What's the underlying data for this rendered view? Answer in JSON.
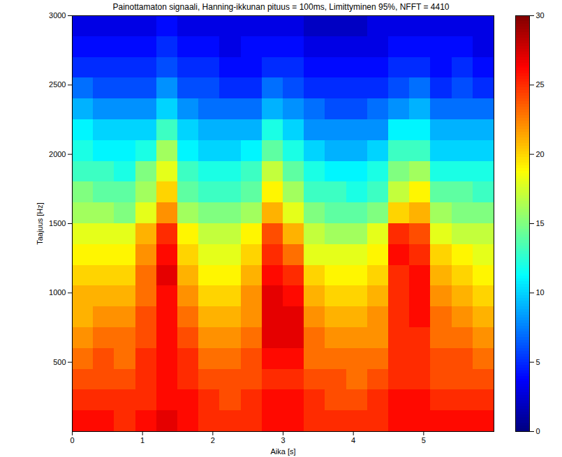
{
  "chart_data": {
    "type": "heatmap",
    "title": "Painottamaton signaali, Hanning-ikkunan pituus = 100ms, Limittyminen 95%, NFFT = 4410",
    "xlabel": "Aika [s]",
    "ylabel": "Taajuus [Hz]",
    "x_bins": [
      0,
      0.3,
      0.6,
      0.9,
      1.2,
      1.5,
      1.8,
      2.1,
      2.4,
      2.7,
      3.0,
      3.3,
      3.6,
      3.9,
      4.2,
      4.5,
      4.8,
      5.1,
      5.4,
      5.7,
      6.0
    ],
    "y_bins": [
      0,
      150,
      300,
      450,
      600,
      750,
      900,
      1050,
      1200,
      1350,
      1500,
      1650,
      1800,
      1950,
      2100,
      2250,
      2400,
      2550,
      2700,
      2850,
      3000
    ],
    "cells": [
      [
        26,
        25,
        24,
        23,
        22,
        21,
        21,
        20,
        19,
        18,
        16,
        15,
        13,
        12,
        11,
        9,
        7,
        5,
        4,
        3
      ],
      [
        26,
        25,
        24,
        24,
        23,
        22,
        21,
        20,
        19,
        18,
        16,
        14,
        13,
        11,
        10,
        8,
        6,
        5,
        4,
        3
      ],
      [
        25,
        25,
        24,
        23,
        23,
        22,
        21,
        20,
        19,
        18,
        15,
        14,
        12,
        11,
        10,
        8,
        6,
        5,
        4,
        3
      ],
      [
        26,
        25,
        25,
        25,
        24,
        24,
        23,
        23,
        22,
        21,
        18,
        16,
        15,
        12,
        10,
        8,
        6,
        5,
        4,
        3
      ],
      [
        27,
        26,
        26,
        26,
        26,
        26,
        26,
        27,
        26,
        25,
        22,
        20,
        18,
        16,
        13,
        10,
        8,
        6,
        5,
        4
      ],
      [
        26,
        26,
        25,
        25,
        24,
        23,
        22,
        21,
        20,
        19,
        16,
        14,
        13,
        11,
        10,
        8,
        6,
        5,
        4,
        3
      ],
      [
        25,
        25,
        24,
        23,
        22,
        21,
        20,
        19,
        18,
        17,
        15,
        13,
        12,
        10,
        9,
        7,
        6,
        5,
        4,
        3
      ],
      [
        25,
        24,
        24,
        23,
        22,
        21,
        20,
        19,
        18,
        17,
        15,
        13,
        12,
        10,
        9,
        7,
        5,
        4,
        3,
        3
      ],
      [
        25,
        25,
        24,
        24,
        23,
        22,
        22,
        21,
        20,
        19,
        16,
        14,
        13,
        11,
        9,
        7,
        5,
        4,
        4,
        3
      ],
      [
        26,
        26,
        25,
        26,
        27,
        27,
        27,
        26,
        25,
        24,
        21,
        19,
        17,
        14,
        12,
        9,
        7,
        5,
        4,
        3
      ],
      [
        26,
        26,
        25,
        26,
        27,
        27,
        26,
        25,
        23,
        21,
        18,
        16,
        14,
        12,
        10,
        8,
        6,
        5,
        4,
        3
      ],
      [
        25,
        25,
        24,
        23,
        23,
        22,
        21,
        20,
        18,
        17,
        15,
        13,
        12,
        10,
        8,
        7,
        5,
        4,
        3,
        2
      ],
      [
        25,
        24,
        24,
        23,
        22,
        21,
        20,
        19,
        18,
        16,
        14,
        13,
        11,
        9,
        8,
        6,
        5,
        4,
        3,
        2
      ],
      [
        25,
        24,
        23,
        23,
        22,
        21,
        20,
        19,
        18,
        16,
        14,
        12,
        11,
        9,
        8,
        6,
        5,
        4,
        3,
        2
      ],
      [
        25,
        25,
        24,
        23,
        22,
        22,
        21,
        20,
        19,
        18,
        15,
        13,
        12,
        10,
        8,
        7,
        5,
        4,
        3,
        3
      ],
      [
        26,
        26,
        25,
        25,
        25,
        25,
        25,
        25,
        26,
        25,
        20,
        17,
        15,
        13,
        11,
        8,
        6,
        5,
        4,
        3
      ],
      [
        26,
        26,
        25,
        25,
        25,
        26,
        26,
        26,
        25,
        24,
        21,
        19,
        16,
        13,
        11,
        9,
        7,
        5,
        4,
        3
      ],
      [
        26,
        25,
        24,
        24,
        23,
        23,
        22,
        21,
        20,
        18,
        16,
        14,
        12,
        10,
        9,
        7,
        5,
        4,
        4,
        3
      ],
      [
        26,
        25,
        24,
        24,
        23,
        22,
        21,
        20,
        19,
        17,
        15,
        14,
        12,
        10,
        9,
        7,
        6,
        5,
        4,
        3
      ],
      [
        26,
        25,
        24,
        23,
        22,
        21,
        20,
        19,
        18,
        17,
        15,
        13,
        12,
        10,
        9,
        7,
        5,
        4,
        3,
        3
      ]
    ],
    "xlim": [
      0,
      6
    ],
    "xticks": [
      0,
      1,
      2,
      3,
      4,
      5
    ],
    "ylim": [
      0,
      3000
    ],
    "yticks": [
      500,
      1000,
      1500,
      2000,
      2500,
      3000
    ],
    "colorbar_lim": [
      0,
      30
    ],
    "colorbar_ticks": [
      0,
      5,
      10,
      15,
      20,
      25,
      30
    ]
  }
}
